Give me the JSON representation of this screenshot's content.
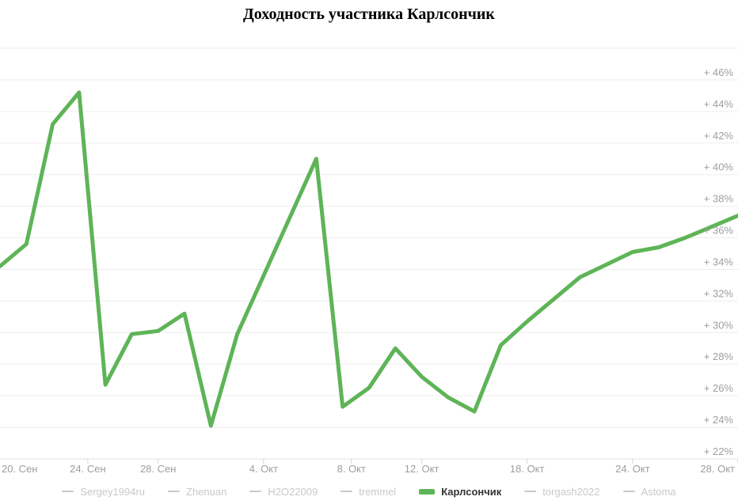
{
  "title": "Доходность участника Карлсончик",
  "legend": {
    "items": [
      {
        "label": "Sergey1994ru",
        "active": false
      },
      {
        "label": "Zhenuan",
        "active": false
      },
      {
        "label": "H2O22009",
        "active": false
      },
      {
        "label": "tremmel",
        "active": false
      },
      {
        "label": "Карлсончик",
        "active": true
      },
      {
        "label": "torgash2022",
        "active": false
      },
      {
        "label": "Astoma",
        "active": false
      }
    ]
  },
  "colors": {
    "series": "#5eb457",
    "gridline": "#ededed",
    "axis_line": "#e0e0e0",
    "tick": "#d6d6d6",
    "axis_text": "#9e9e9e",
    "legend_inactive": "#c9c9c9",
    "legend_active_text": "#333333"
  },
  "chart_data": {
    "type": "line",
    "title": "Доходность участника Карлсончик",
    "grid": true,
    "legend_position": "bottom",
    "series": [
      {
        "name": "Карлсончик",
        "color": "#5eb457",
        "dates": [
          "20.09",
          "21.09",
          "22.09",
          "23.09",
          "26.09",
          "27.09",
          "28.09",
          "29.09",
          "30.09",
          "03.10",
          "04.10",
          "05.10",
          "06.10",
          "07.10",
          "10.10",
          "11.10",
          "12.10",
          "13.10",
          "14.10",
          "17.10",
          "18.10",
          "19.10",
          "20.10",
          "21.10",
          "24.10",
          "25.10",
          "26.10",
          "27.10",
          "28.10"
        ],
        "values": [
          34.2,
          35.6,
          43.2,
          45.2,
          26.7,
          29.9,
          30.1,
          31.2,
          24.1,
          29.9,
          33.6,
          37.3,
          41.0,
          25.3,
          26.5,
          29.0,
          27.2,
          25.9,
          25.0,
          29.2,
          30.7,
          32.1,
          33.5,
          34.3,
          35.1,
          35.4,
          36.0,
          36.7,
          37.4
        ]
      }
    ],
    "y_axis": {
      "min": 22,
      "max": 48,
      "tick_step": 2,
      "labeled_values": [
        46,
        44,
        42,
        40,
        38,
        36,
        34,
        32,
        30,
        28,
        26,
        24,
        22
      ],
      "label_format": "+ {value}%",
      "labels_side": "right"
    },
    "x_axis": {
      "max_pos": 28,
      "ticks": [
        {
          "label": "20. Сен",
          "pos": 0,
          "align": "start"
        },
        {
          "label": "24. Сен",
          "pos": 3.333,
          "align": "middle"
        },
        {
          "label": "28. Сен",
          "pos": 6,
          "align": "middle"
        },
        {
          "label": "4. Окт",
          "pos": 10,
          "align": "middle"
        },
        {
          "label": "8. Окт",
          "pos": 13.333,
          "align": "middle"
        },
        {
          "label": "12. Окт",
          "pos": 16,
          "align": "middle"
        },
        {
          "label": "18. Окт",
          "pos": 20,
          "align": "middle"
        },
        {
          "label": "24. Окт",
          "pos": 24,
          "align": "middle"
        },
        {
          "label": "28. Окт",
          "pos": 28,
          "align": "end"
        }
      ]
    }
  }
}
